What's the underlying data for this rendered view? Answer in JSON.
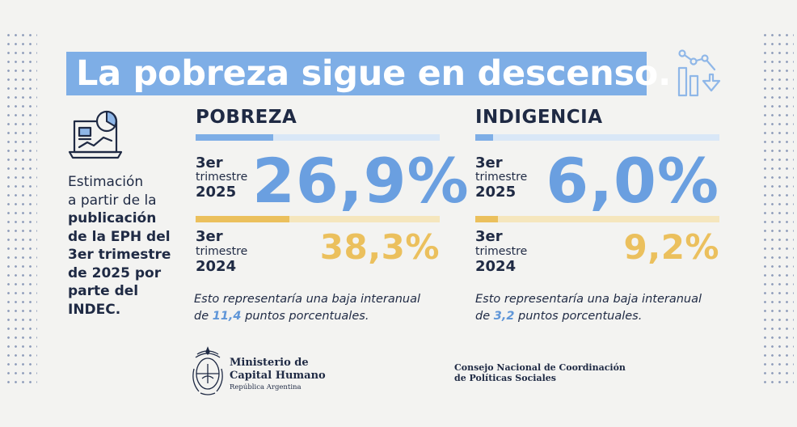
{
  "title": "La pobreza sigue en descenso.",
  "colors": {
    "title_bg": "#7eaee6",
    "blue_value": "#6a9fe0",
    "gold_value": "#ebc05d",
    "dark_text": "#1f2a44",
    "background": "#f3f3f1"
  },
  "icons": [
    "trend-down-chart-icon",
    "laptop-chart-icon",
    "national-seal-icon"
  ],
  "estimation": {
    "line1": "Estimación",
    "line2": "a partir de la",
    "line3": "publicación",
    "line4": "de la EPH del",
    "line5": "3er trimestre",
    "line6": "de 2025 por",
    "line7": "parte del INDEC."
  },
  "pobreza": {
    "heading": "POBREZA",
    "current": {
      "label_top": "3er",
      "label_mid": "trimestre",
      "label_year": "2025",
      "value": "26,9%"
    },
    "previous": {
      "label_top": "3er",
      "label_mid": "trimestre",
      "label_year": "2024",
      "value": "38,3%"
    },
    "note_prefix": "Esto representaría una baja interanual",
    "note_de": "de",
    "note_points": "11,4",
    "note_suffix": "puntos porcentuales."
  },
  "indigencia": {
    "heading": "INDIGENCIA",
    "current": {
      "label_top": "3er",
      "label_mid": "trimestre",
      "label_year": "2025",
      "value": "6,0%"
    },
    "previous": {
      "label_top": "3er",
      "label_mid": "trimestre",
      "label_year": "2024",
      "value": "9,2%"
    },
    "note_prefix": "Esto representaría una baja interanual",
    "note_de": "de",
    "note_points": "3,2",
    "note_suffix": "puntos porcentuales."
  },
  "footer": {
    "ministry_line1": "Ministerio de",
    "ministry_line2": "Capital Humano",
    "ministry_line3": "República Argentina",
    "council_line1": "Consejo Nacional de Coordinación",
    "council_line2": "de Políticas Sociales"
  }
}
